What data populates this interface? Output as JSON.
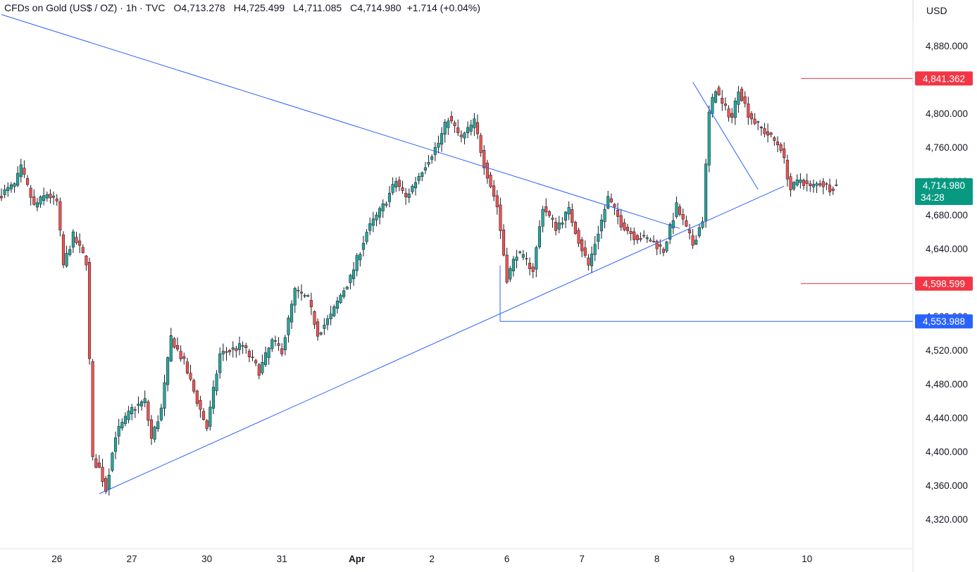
{
  "header": {
    "symbol": "CFDs on Gold (US$ / OZ)",
    "interval": "1h",
    "source": "TVC",
    "open_label": "O",
    "open": "4,713.278",
    "high_label": "H",
    "high": "4,725.499",
    "low_label": "L",
    "low": "4,711.085",
    "close_label": "C",
    "close": "4,714.980",
    "change": "+1.714 (+0.04%)",
    "currency": "USD"
  },
  "colors": {
    "up": "#26a69a",
    "down": "#ef5350",
    "trendline": "#2962ff",
    "red_level": "#f23645",
    "blue_level": "#2962ff",
    "current_price_bg": "#089981"
  },
  "chart_data": {
    "type": "candlestick",
    "y_axis_ticks": [
      "4,880.000",
      "4,840.000",
      "4,800.000",
      "4,760.000",
      "4,720.000",
      "4,680.000",
      "4,640.000",
      "4,600.000",
      "4,560.000",
      "4,520.000",
      "4,480.000",
      "4,440.000",
      "4,400.000",
      "4,360.000",
      "4,320.000"
    ],
    "x_axis_labels": [
      "26",
      "27",
      "30",
      "31",
      "Apr",
      "2",
      "6",
      "7",
      "8",
      "9",
      "10"
    ],
    "ylim": [
      4300,
      4900
    ],
    "bars_per_day": 23,
    "price_labels": {
      "resistance": "4,841.362",
      "current": "4,714.980",
      "countdown": "34:28",
      "support_1": "4,598.599",
      "support_2": "4,553.988"
    },
    "price_levels": {
      "resistance": 4841.362,
      "current": 4714.98,
      "support_1": 4598.599,
      "support_2": 4553.988
    },
    "trendlines": [
      {
        "name": "upper-descending",
        "bar_from": 0,
        "from_price": 4917,
        "bar_to": 208,
        "to_price": 4664
      },
      {
        "name": "lower-ascending",
        "bar_from": 30,
        "from_price": 4350,
        "bar_to": 240,
        "to_price": 4714
      },
      {
        "name": "short-descending",
        "bar_from": 212,
        "from_price": 4837,
        "bar_to": 232,
        "to_price": 4710
      }
    ],
    "anchors": [
      [
        0,
        4705
      ],
      [
        4,
        4715
      ],
      [
        6,
        4735
      ],
      [
        10,
        4690
      ],
      [
        14,
        4705
      ],
      [
        17,
        4695
      ],
      [
        19,
        4620
      ],
      [
        22,
        4655
      ],
      [
        26,
        4625
      ],
      [
        28,
        4390
      ],
      [
        30,
        4380
      ],
      [
        32,
        4355
      ],
      [
        35,
        4420
      ],
      [
        40,
        4450
      ],
      [
        44,
        4460
      ],
      [
        46,
        4415
      ],
      [
        49,
        4450
      ],
      [
        52,
        4535
      ],
      [
        56,
        4505
      ],
      [
        60,
        4460
      ],
      [
        63,
        4428
      ],
      [
        67,
        4515
      ],
      [
        74,
        4525
      ],
      [
        79,
        4495
      ],
      [
        83,
        4530
      ],
      [
        86,
        4520
      ],
      [
        90,
        4590
      ],
      [
        94,
        4580
      ],
      [
        97,
        4540
      ],
      [
        101,
        4560
      ],
      [
        104,
        4585
      ],
      [
        107,
        4605
      ],
      [
        112,
        4660
      ],
      [
        117,
        4690
      ],
      [
        121,
        4720
      ],
      [
        124,
        4700
      ],
      [
        127,
        4720
      ],
      [
        130,
        4740
      ],
      [
        134,
        4765
      ],
      [
        137,
        4795
      ],
      [
        141,
        4770
      ],
      [
        145,
        4790
      ],
      [
        148,
        4740
      ],
      [
        152,
        4690
      ],
      [
        155,
        4605
      ],
      [
        158,
        4635
      ],
      [
        161,
        4625
      ],
      [
        163,
        4615
      ],
      [
        166,
        4690
      ],
      [
        170,
        4665
      ],
      [
        174,
        4685
      ],
      [
        177,
        4650
      ],
      [
        180,
        4620
      ],
      [
        183,
        4660
      ],
      [
        186,
        4700
      ],
      [
        190,
        4670
      ],
      [
        194,
        4655
      ],
      [
        199,
        4650
      ],
      [
        203,
        4638
      ],
      [
        207,
        4690
      ],
      [
        212,
        4645
      ],
      [
        215,
        4675
      ],
      [
        217,
        4800
      ],
      [
        219,
        4830
      ],
      [
        221,
        4810
      ],
      [
        224,
        4795
      ],
      [
        226,
        4830
      ],
      [
        229,
        4800
      ],
      [
        232,
        4785
      ],
      [
        235,
        4775
      ],
      [
        239,
        4760
      ],
      [
        242,
        4710
      ],
      [
        245,
        4722
      ],
      [
        248,
        4712
      ],
      [
        251,
        4718
      ],
      [
        254,
        4712
      ],
      [
        256,
        4715
      ]
    ]
  }
}
